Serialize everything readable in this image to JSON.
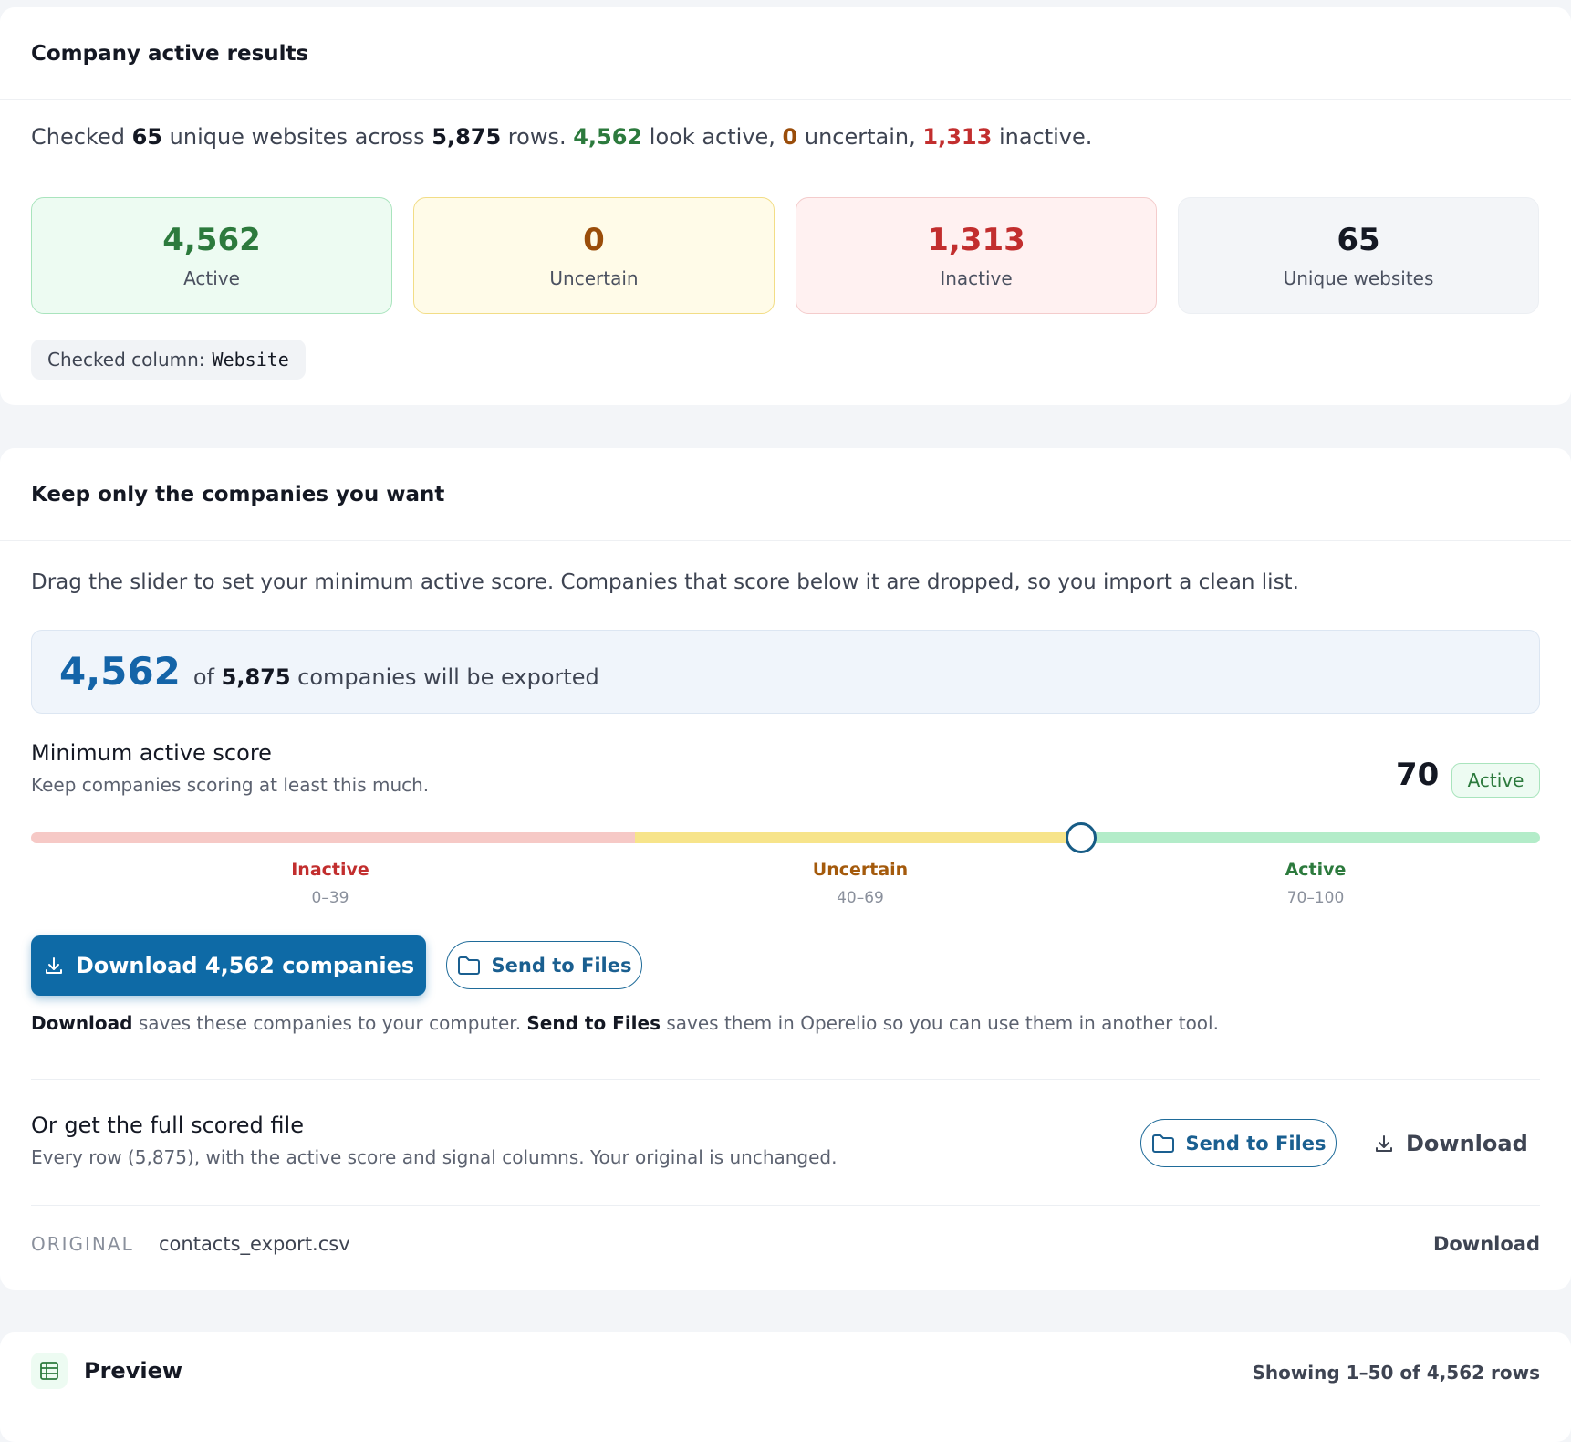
{
  "results": {
    "title": "Company active results",
    "summary": {
      "t1": "Checked ",
      "unique": "65",
      "t2": " unique websites across ",
      "rows": "5,875",
      "t3": " rows. ",
      "active": "4,562",
      "t4": " look active, ",
      "uncertain": "0",
      "t5": " uncertain, ",
      "inactive": "1,313",
      "t6": " inactive."
    },
    "stats": [
      {
        "value": "4,562",
        "label": "Active"
      },
      {
        "value": "0",
        "label": "Uncertain"
      },
      {
        "value": "1,313",
        "label": "Inactive"
      },
      {
        "value": "65",
        "label": "Unique websites"
      }
    ],
    "checked_column_label": "Checked column:",
    "checked_column_value": "Website"
  },
  "filter": {
    "title": "Keep only the companies you want",
    "intro": "Drag the slider to set your minimum active score. Companies that score below it are dropped, so you import a clean list.",
    "export_count": "4,562",
    "export_of": "of ",
    "export_total": "5,875",
    "export_suffix": " companies will be exported",
    "min_label": "Minimum active score",
    "min_sub": "Keep companies scoring at least this much.",
    "score": "70",
    "score_badge": "Active",
    "slider_value": 70,
    "zones": [
      {
        "name": "Inactive",
        "range": "0–39",
        "color": "#c22e2e"
      },
      {
        "name": "Uncertain",
        "range": "40–69",
        "color": "#a45a0c"
      },
      {
        "name": "Active",
        "range": "70–100",
        "color": "#2c7a3d"
      }
    ],
    "download_button": "Download 4,562 companies",
    "send_button": "Send to Files",
    "note": {
      "b1": "Download",
      "t1": " saves these companies to your computer. ",
      "b2": "Send to Files",
      "t2": " saves them in Operelio so you can use them in another tool."
    },
    "full": {
      "title": "Or get the full scored file",
      "sub": "Every row (5,875), with the active score and signal columns. Your original is unchanged.",
      "send_button": "Send to Files",
      "download_button": "Download"
    },
    "original": {
      "label": "ORIGINAL",
      "file": "contacts_export.csv",
      "download": "Download"
    }
  },
  "preview": {
    "title": "Preview",
    "meta": "Showing 1–50 of 4,562 rows"
  },
  "colors": {
    "primary": "#0e6aa6",
    "active": "#2c7a3d",
    "uncertain": "#9a4d0a",
    "inactive": "#c22e2e"
  },
  "icons": {
    "download": "download-icon",
    "folder": "folder-icon",
    "table": "table-icon"
  }
}
